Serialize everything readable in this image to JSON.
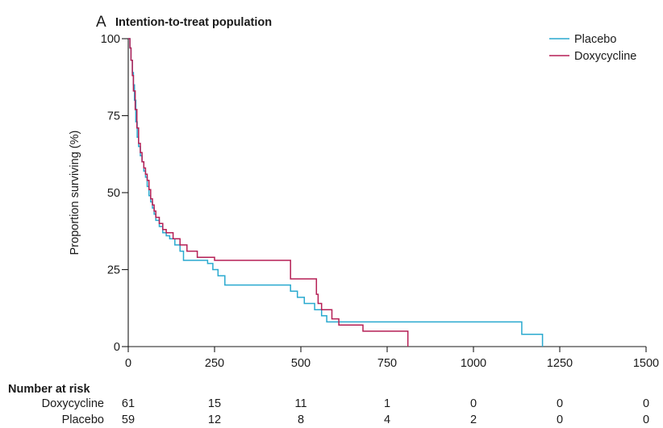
{
  "chart_data": {
    "type": "line",
    "panel_letter": "A",
    "title": "Intention-to-treat population",
    "xlabel": "",
    "ylabel": "Proportion surviving (%)",
    "xlim": [
      0,
      1500
    ],
    "ylim": [
      0,
      100
    ],
    "x_ticks": [
      0,
      250,
      500,
      750,
      1000,
      1250,
      1500
    ],
    "y_ticks": [
      0,
      25,
      50,
      75,
      100
    ],
    "grid": false,
    "legend_position": "top-right",
    "series": [
      {
        "name": "Placebo",
        "color": "#29a9cf",
        "step": true,
        "x": [
          0,
          5,
          8,
          12,
          15,
          18,
          22,
          26,
          30,
          35,
          40,
          45,
          50,
          55,
          60,
          65,
          70,
          75,
          80,
          90,
          100,
          110,
          120,
          135,
          150,
          160,
          230,
          245,
          260,
          280,
          470,
          490,
          510,
          540,
          560,
          575,
          600,
          1140,
          1200
        ],
        "y": [
          100,
          97,
          93,
          89,
          85,
          80,
          73,
          68,
          65,
          62,
          60,
          57,
          55,
          52,
          49,
          47,
          45,
          43,
          41,
          39,
          37,
          36,
          35,
          33,
          31,
          28,
          27,
          25,
          23,
          20,
          18,
          16,
          14,
          12,
          10,
          8,
          8,
          4,
          0
        ]
      },
      {
        "name": "Doxycycline",
        "color": "#b51f55",
        "step": true,
        "x": [
          0,
          5,
          8,
          12,
          15,
          20,
          25,
          30,
          35,
          40,
          45,
          50,
          55,
          60,
          65,
          70,
          75,
          80,
          90,
          100,
          110,
          130,
          150,
          170,
          200,
          220,
          250,
          470,
          545,
          550,
          560,
          590,
          610,
          680,
          810
        ],
        "y": [
          100,
          97,
          93,
          88,
          83,
          77,
          71,
          66,
          63,
          60,
          58,
          56,
          54,
          51,
          48,
          46,
          44,
          42,
          40,
          38,
          37,
          35,
          33,
          31,
          29,
          29,
          28,
          22,
          17,
          14,
          12,
          9,
          7,
          5,
          0
        ]
      }
    ]
  },
  "risk_table": {
    "heading": "Number at risk",
    "x_times": [
      0,
      250,
      500,
      750,
      1000,
      1250,
      1500
    ],
    "rows": [
      {
        "label": "Doxycycline",
        "values": [
          "61",
          "15",
          "11",
          "1",
          "0",
          "0",
          "0"
        ]
      },
      {
        "label": "Placebo",
        "values": [
          "59",
          "12",
          "8",
          "4",
          "2",
          "0",
          "0"
        ]
      }
    ]
  }
}
